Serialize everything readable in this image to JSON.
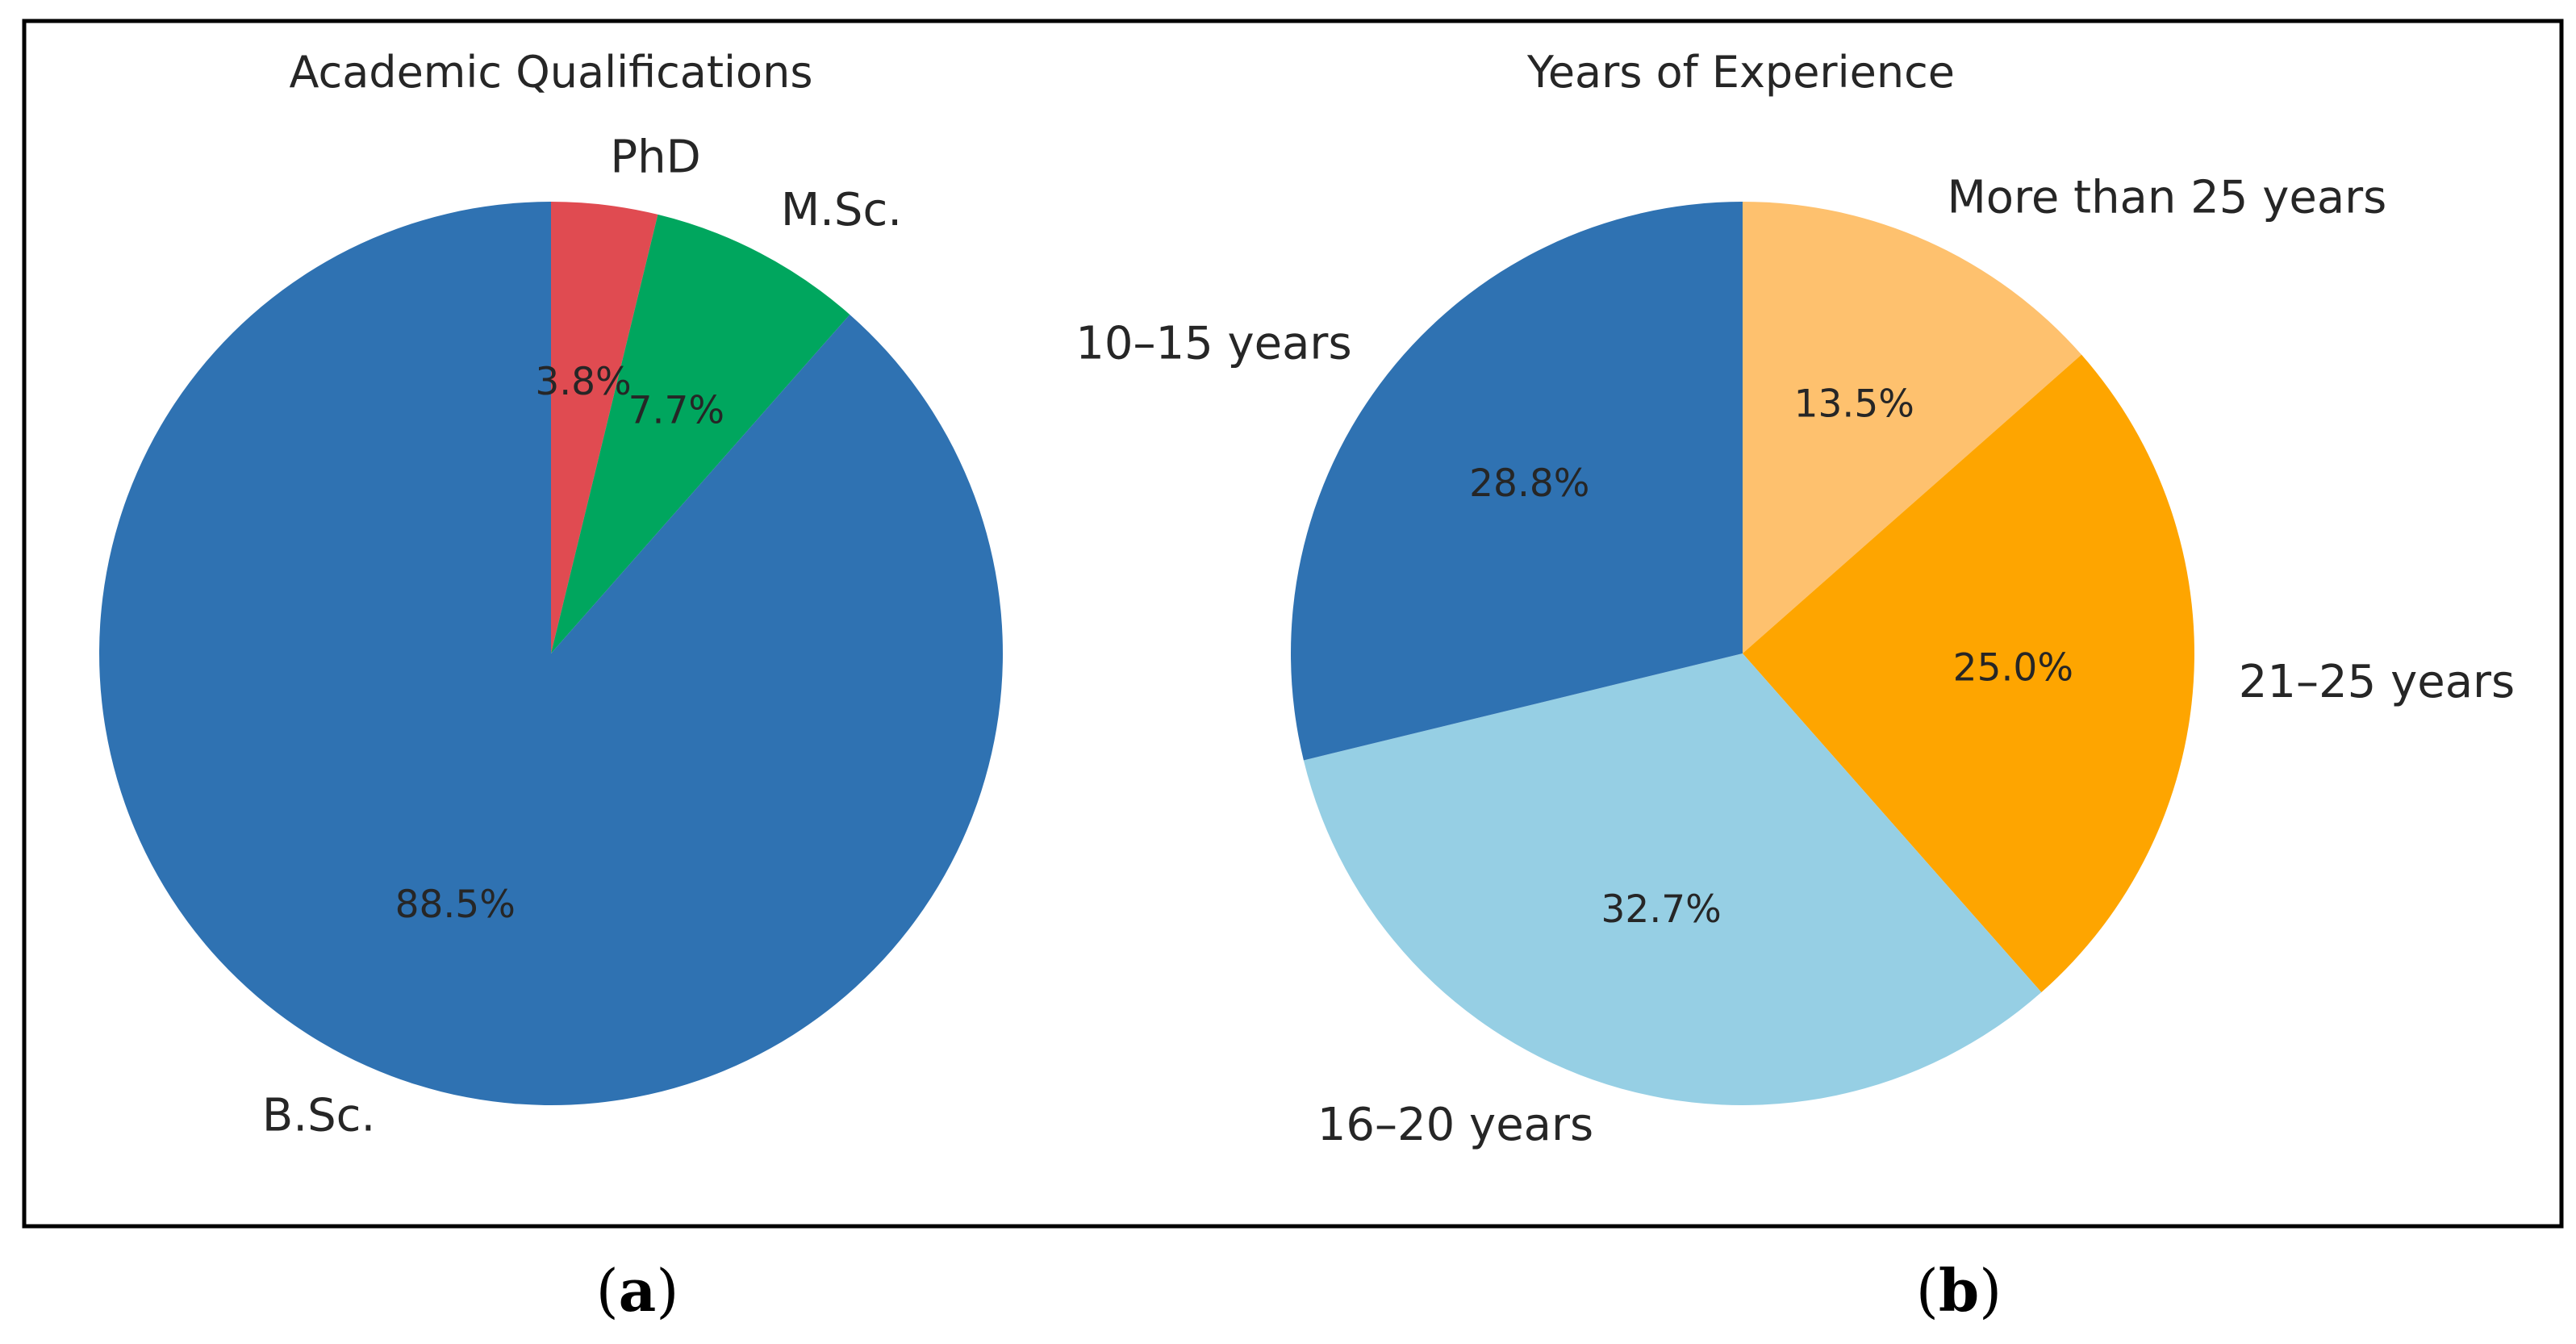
{
  "colors": {
    "frame": "#000000",
    "blue": "#2f72b2",
    "red": "#e04b51",
    "green": "#00a65e",
    "light_blue": "#96cfe4",
    "orange": "#fea500",
    "light_orange": "#fec16e"
  },
  "chart_data": [
    {
      "type": "pie",
      "title": "Academic Qualifications",
      "panel": "a",
      "start_angle_deg": 90,
      "direction": "clockwise",
      "slices": [
        {
          "label": "PhD",
          "value": 3.8,
          "pct_label": "3.8%",
          "color": "#e04b51"
        },
        {
          "label": "M.Sc.",
          "value": 7.7,
          "pct_label": "7.7%",
          "color": "#00a65e"
        },
        {
          "label": "B.Sc.",
          "value": 88.5,
          "pct_label": "88.5%",
          "color": "#2f72b2"
        }
      ]
    },
    {
      "type": "pie",
      "title": "Years of Experience",
      "panel": "b",
      "start_angle_deg": 90,
      "direction": "clockwise",
      "slices": [
        {
          "label": "More than 25 years",
          "value": 13.5,
          "pct_label": "13.5%",
          "color": "#fec16e"
        },
        {
          "label": "21–25 years",
          "value": 25.0,
          "pct_label": "25.0%",
          "color": "#fea500"
        },
        {
          "label": "16–20 years",
          "value": 32.7,
          "pct_label": "32.7%",
          "color": "#96cfe4"
        },
        {
          "label": "10–15 years",
          "value": 28.8,
          "pct_label": "28.8%",
          "color": "#2f72b2"
        }
      ]
    }
  ]
}
